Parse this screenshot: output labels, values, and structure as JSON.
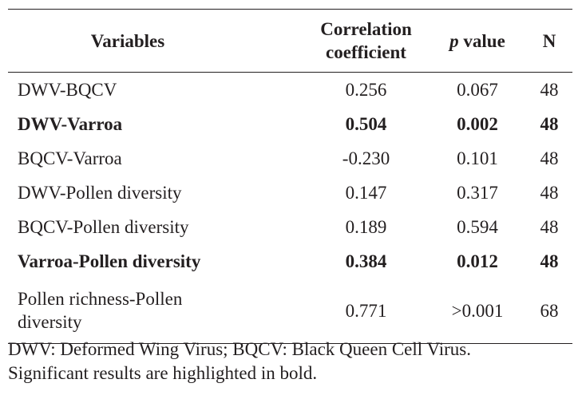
{
  "table": {
    "headers": {
      "variables": "Variables",
      "correlation_line1": "Correlation",
      "correlation_line2": "coefficient",
      "p_italic": "p",
      "p_rest": " value",
      "n": "N"
    },
    "rows": [
      {
        "variable": "DWV-BQCV",
        "r": "0.256",
        "p": "0.067",
        "n": "48",
        "bold": false
      },
      {
        "variable": "DWV-Varroa",
        "r": "0.504",
        "p": "0.002",
        "n": "48",
        "bold": true
      },
      {
        "variable": "BQCV-Varroa",
        "r": "-0.230",
        "p": "0.101",
        "n": "48",
        "bold": false
      },
      {
        "variable": "DWV-Pollen diversity",
        "r": "0.147",
        "p": "0.317",
        "n": "48",
        "bold": false
      },
      {
        "variable": "BQCV-Pollen diversity",
        "r": "0.189",
        "p": "0.594",
        "n": "48",
        "bold": false
      },
      {
        "variable": "Varroa-Pollen diversity",
        "r": "0.384",
        "p": "0.012",
        "n": "48",
        "bold": true
      },
      {
        "variable_line1": "Pollen richness-Pollen",
        "variable_line2": "diversity",
        "r": "0.771",
        "p": ">0.001",
        "n": "68",
        "bold": false
      }
    ]
  },
  "footnote": {
    "line1": "DWV: Deformed Wing Virus; BQCV: Black Queen Cell Virus.",
    "line2": "Significant results are highlighted in bold."
  }
}
